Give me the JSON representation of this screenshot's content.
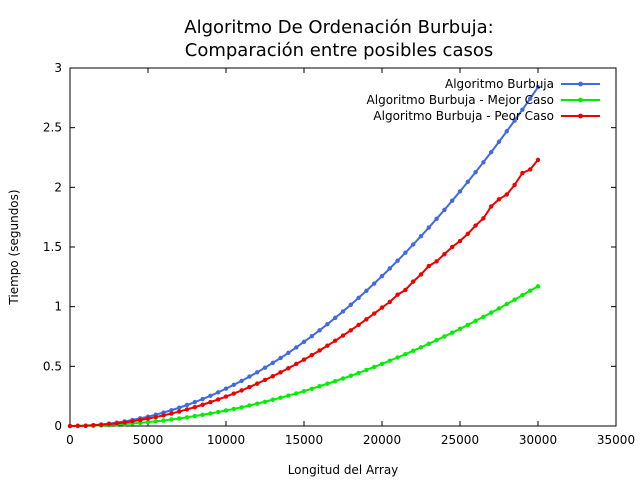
{
  "chart_data": {
    "type": "line",
    "title_lines": [
      "Algoritmo De Ordenación Burbuja:",
      "Comparación entre posibles casos"
    ],
    "xlabel": "Longitud del Array",
    "ylabel": "Tiempo (segundos)",
    "xlim": [
      0,
      35000
    ],
    "ylim": [
      0,
      3
    ],
    "xticks": [
      0,
      5000,
      10000,
      15000,
      20000,
      25000,
      30000,
      35000
    ],
    "yticks": [
      0,
      0.5,
      1,
      1.5,
      2,
      2.5,
      3
    ],
    "xtick_labels": [
      "0",
      "5000",
      "10000",
      "15000",
      "20000",
      "25000",
      "30000",
      "35000"
    ],
    "ytick_labels": [
      "0",
      "0.5",
      "1",
      "1.5",
      "2",
      "2.5",
      "3"
    ],
    "grid": false,
    "legend_position": "top-right",
    "x": [
      0,
      500,
      1000,
      1500,
      2000,
      2500,
      3000,
      3500,
      4000,
      4500,
      5000,
      5500,
      6000,
      6500,
      7000,
      7500,
      8000,
      8500,
      9000,
      9500,
      10000,
      10500,
      11000,
      11500,
      12000,
      12500,
      13000,
      13500,
      14000,
      14500,
      15000,
      15500,
      16000,
      16500,
      17000,
      17500,
      18000,
      18500,
      19000,
      19500,
      20000,
      20500,
      21000,
      21500,
      22000,
      22500,
      23000,
      23500,
      24000,
      24500,
      25000,
      25500,
      26000,
      26500,
      27000,
      27500,
      28000,
      28500,
      29000,
      29500,
      30000
    ],
    "series": [
      {
        "name": "Algoritmo Burbuja",
        "color": "#4169e1",
        "values": [
          0.0,
          0.001,
          0.003,
          0.007,
          0.013,
          0.02,
          0.028,
          0.038,
          0.05,
          0.064,
          0.078,
          0.095,
          0.113,
          0.132,
          0.153,
          0.176,
          0.2,
          0.226,
          0.253,
          0.282,
          0.313,
          0.345,
          0.378,
          0.414,
          0.45,
          0.489,
          0.529,
          0.57,
          0.613,
          0.658,
          0.705,
          0.753,
          0.802,
          0.853,
          0.906,
          0.96,
          1.016,
          1.074,
          1.133,
          1.194,
          1.256,
          1.32,
          1.385,
          1.452,
          1.521,
          1.591,
          1.663,
          1.736,
          1.811,
          1.888,
          1.966,
          2.046,
          2.127,
          2.21,
          2.295,
          2.382,
          2.47,
          2.559,
          2.651,
          2.744,
          2.84
        ]
      },
      {
        "name": "Algoritmo Burbuja - Mejor Caso",
        "color": "#00ee00",
        "values": [
          0.0,
          0.0,
          0.001,
          0.003,
          0.005,
          0.008,
          0.012,
          0.016,
          0.021,
          0.026,
          0.032,
          0.039,
          0.046,
          0.055,
          0.063,
          0.073,
          0.083,
          0.094,
          0.105,
          0.117,
          0.13,
          0.143,
          0.157,
          0.172,
          0.187,
          0.203,
          0.22,
          0.237,
          0.255,
          0.273,
          0.292,
          0.312,
          0.333,
          0.354,
          0.376,
          0.398,
          0.421,
          0.445,
          0.47,
          0.495,
          0.52,
          0.547,
          0.574,
          0.602,
          0.63,
          0.659,
          0.689,
          0.719,
          0.75,
          0.782,
          0.814,
          0.847,
          0.881,
          0.915,
          0.95,
          0.985,
          1.022,
          1.058,
          1.096,
          1.134,
          1.17
        ]
      },
      {
        "name": "Algoritmo Burbuja - Peor Caso",
        "color": "#ee0000",
        "values": [
          0.0,
          0.001,
          0.002,
          0.006,
          0.01,
          0.016,
          0.022,
          0.03,
          0.04,
          0.05,
          0.062,
          0.075,
          0.089,
          0.104,
          0.121,
          0.139,
          0.158,
          0.178,
          0.2,
          0.223,
          0.247,
          0.272,
          0.298,
          0.326,
          0.355,
          0.386,
          0.417,
          0.45,
          0.484,
          0.52,
          0.556,
          0.594,
          0.633,
          0.673,
          0.715,
          0.758,
          0.802,
          0.847,
          0.894,
          0.942,
          0.992,
          1.04,
          1.1,
          1.14,
          1.21,
          1.27,
          1.34,
          1.38,
          1.44,
          1.5,
          1.55,
          1.61,
          1.68,
          1.74,
          1.84,
          1.9,
          1.94,
          2.02,
          2.12,
          2.15,
          2.23
        ]
      }
    ]
  }
}
